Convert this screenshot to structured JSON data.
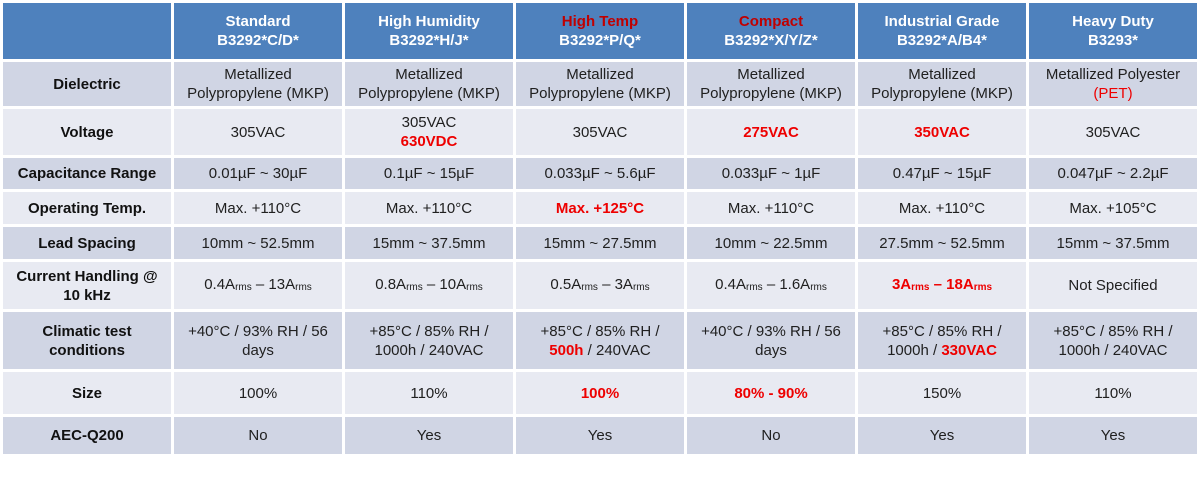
{
  "colors": {
    "header_bg": "#4E81BD",
    "header_text": "#FFFFFF",
    "header_red": "#C00000",
    "cell_red": "#EE0000",
    "row_dark": "#D0D5E4",
    "row_light": "#E8EAF2",
    "gap": "#FFFFFF"
  },
  "table": {
    "corner_label": "",
    "columns": [
      {
        "name": "Standard",
        "code": "B3292*C/D*",
        "red": false
      },
      {
        "name": "High Humidity",
        "code": "B3292*H/J*",
        "red": false
      },
      {
        "name": "High Temp",
        "code": "B3292*P/Q*",
        "red": true
      },
      {
        "name": "Compact",
        "code": "B3292*X/Y/Z*",
        "red": true
      },
      {
        "name": "Industrial Grade",
        "code": "B3292*A/B4*",
        "red": false
      },
      {
        "name": "Heavy Duty",
        "code": "B3293*",
        "red": false
      }
    ],
    "rows": [
      {
        "id": "dielectric",
        "label": [
          {
            "t": "Dielectric"
          }
        ],
        "cells": [
          [
            {
              "t": "Metallized"
            },
            {
              "br": true
            },
            {
              "t": "Polypropylene (MKP)"
            }
          ],
          [
            {
              "t": "Metallized"
            },
            {
              "br": true
            },
            {
              "t": "Polypropylene (MKP)"
            }
          ],
          [
            {
              "t": "Metallized"
            },
            {
              "br": true
            },
            {
              "t": "Polypropylene (MKP)"
            }
          ],
          [
            {
              "t": "Metallized"
            },
            {
              "br": true
            },
            {
              "t": "Polypropylene (MKP)"
            }
          ],
          [
            {
              "t": "Metallized"
            },
            {
              "br": true
            },
            {
              "t": "Polypropylene (MKP)"
            }
          ],
          [
            {
              "t": "Metallized Polyester"
            },
            {
              "br": true
            },
            {
              "t": "(PET)",
              "red": true
            }
          ]
        ]
      },
      {
        "id": "voltage",
        "label": [
          {
            "t": "Voltage"
          }
        ],
        "cells": [
          [
            {
              "t": "305VAC"
            }
          ],
          [
            {
              "t": "305VAC"
            },
            {
              "br": true
            },
            {
              "t": "630VDC",
              "red": true,
              "bold": true
            }
          ],
          [
            {
              "t": "305VAC"
            }
          ],
          [
            {
              "t": "275VAC",
              "red": true,
              "bold": true
            }
          ],
          [
            {
              "t": "350VAC",
              "red": true,
              "bold": true
            }
          ],
          [
            {
              "t": "305VAC"
            }
          ]
        ]
      },
      {
        "id": "capacitance-range",
        "label": [
          {
            "t": "Capacitance Range"
          }
        ],
        "cells": [
          [
            {
              "t": "0.01µF ~ 30µF"
            }
          ],
          [
            {
              "t": "0.1µF ~ 15µF"
            }
          ],
          [
            {
              "t": "0.033µF ~ 5.6µF"
            }
          ],
          [
            {
              "t": "0.033µF ~ 1µF"
            }
          ],
          [
            {
              "t": "0.47µF ~ 15µF"
            }
          ],
          [
            {
              "t": "0.047µF ~ 2.2µF"
            }
          ]
        ]
      },
      {
        "id": "operating-temp",
        "label": [
          {
            "t": "Operating Temp."
          }
        ],
        "cells": [
          [
            {
              "t": "Max. +110°C"
            }
          ],
          [
            {
              "t": "Max. +110°C"
            }
          ],
          [
            {
              "t": "Max. +125°C",
              "red": true,
              "bold": true
            }
          ],
          [
            {
              "t": "Max. +110°C"
            }
          ],
          [
            {
              "t": "Max. +110°C"
            }
          ],
          [
            {
              "t": "Max. +105°C"
            }
          ]
        ]
      },
      {
        "id": "lead-spacing",
        "label": [
          {
            "t": "Lead Spacing"
          }
        ],
        "cells": [
          [
            {
              "t": "10mm ~ 52.5mm"
            }
          ],
          [
            {
              "t": "15mm ~ 37.5mm"
            }
          ],
          [
            {
              "t": "15mm ~ 27.5mm"
            }
          ],
          [
            {
              "t": "10mm ~ 22.5mm"
            }
          ],
          [
            {
              "t": "27.5mm ~ 52.5mm"
            }
          ],
          [
            {
              "t": "15mm ~ 37.5mm"
            }
          ]
        ]
      },
      {
        "id": "current-handling",
        "label": [
          {
            "t": "Current Handling @"
          },
          {
            "br": true
          },
          {
            "t": "10 kHz"
          }
        ],
        "cells": [
          [
            {
              "t": "0.4A"
            },
            {
              "t": "rms",
              "sub": true
            },
            {
              "t": " – 13A"
            },
            {
              "t": "rms",
              "sub": true
            }
          ],
          [
            {
              "t": "0.8A"
            },
            {
              "t": "rms",
              "sub": true
            },
            {
              "t": " – 10A"
            },
            {
              "t": "rms",
              "sub": true
            }
          ],
          [
            {
              "t": "0.5A"
            },
            {
              "t": "rms",
              "sub": true
            },
            {
              "t": " – 3A"
            },
            {
              "t": "rms",
              "sub": true
            }
          ],
          [
            {
              "t": "0.4A"
            },
            {
              "t": "rms",
              "sub": true
            },
            {
              "t": " – 1.6A"
            },
            {
              "t": "rms",
              "sub": true
            }
          ],
          [
            {
              "t": "3A",
              "red": true,
              "bold": true
            },
            {
              "t": "rms",
              "red": true,
              "bold": true,
              "sub": true
            },
            {
              "t": " – 18A",
              "red": true,
              "bold": true
            },
            {
              "t": "rms",
              "red": true,
              "bold": true,
              "sub": true
            }
          ],
          [
            {
              "t": "Not Specified"
            }
          ]
        ]
      },
      {
        "id": "climatic-test-conditions",
        "label": [
          {
            "t": "Climatic test"
          },
          {
            "br": true
          },
          {
            "t": "conditions"
          }
        ],
        "cells": [
          [
            {
              "t": "+40°C / 93% RH / 56"
            },
            {
              "br": true
            },
            {
              "t": "days"
            }
          ],
          [
            {
              "t": "+85°C / 85% RH /"
            },
            {
              "br": true
            },
            {
              "t": "1000h / 240VAC"
            }
          ],
          [
            {
              "t": "+85°C / 85% RH /"
            },
            {
              "br": true
            },
            {
              "t": "500h",
              "red": true,
              "bold": true
            },
            {
              "t": " / 240VAC"
            }
          ],
          [
            {
              "t": "+40°C / 93% RH / 56"
            },
            {
              "br": true
            },
            {
              "t": "days"
            }
          ],
          [
            {
              "t": "+85°C / 85% RH /"
            },
            {
              "br": true
            },
            {
              "t": "1000h / "
            },
            {
              "t": "330VAC",
              "red": true,
              "bold": true
            }
          ],
          [
            {
              "t": "+85°C / 85% RH /"
            },
            {
              "br": true
            },
            {
              "t": "1000h / 240VAC"
            }
          ]
        ]
      },
      {
        "id": "size",
        "label": [
          {
            "t": "Size"
          }
        ],
        "cells": [
          [
            {
              "t": "100%"
            }
          ],
          [
            {
              "t": "110%"
            }
          ],
          [
            {
              "t": "100%",
              "red": true,
              "bold": true
            }
          ],
          [
            {
              "t": "80% - 90%",
              "red": true,
              "bold": true
            }
          ],
          [
            {
              "t": "150%"
            }
          ],
          [
            {
              "t": "110%"
            }
          ]
        ]
      },
      {
        "id": "aec-q200",
        "label": [
          {
            "t": "AEC-Q200"
          }
        ],
        "cells": [
          [
            {
              "t": "No"
            }
          ],
          [
            {
              "t": "Yes"
            }
          ],
          [
            {
              "t": "Yes"
            }
          ],
          [
            {
              "t": "No"
            }
          ],
          [
            {
              "t": "Yes"
            }
          ],
          [
            {
              "t": "Yes"
            }
          ]
        ]
      }
    ]
  }
}
